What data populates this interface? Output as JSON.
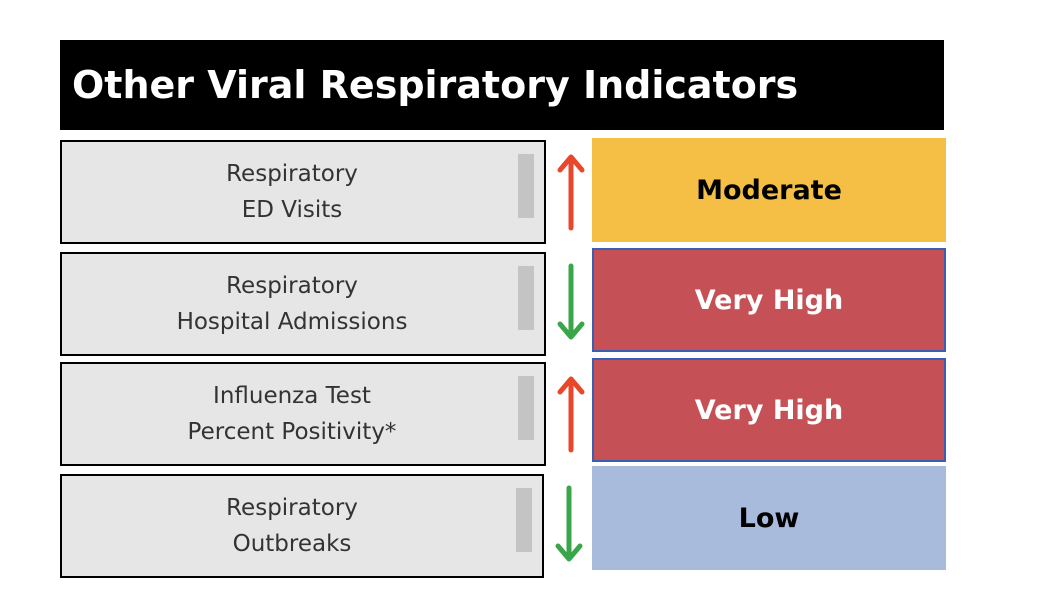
{
  "title": "Other Viral Respiratory Indicators",
  "indicators": [
    {
      "line1": "Respiratory",
      "line2": "ED Visits",
      "trend": "up",
      "trend_color": "#e8472c",
      "level": "Moderate",
      "level_bg": "#f4bf44",
      "level_fg": "#000000"
    },
    {
      "line1": "Respiratory",
      "line2": "Hospital Admissions",
      "trend": "down",
      "trend_color": "#3aa64a",
      "level": "Very High",
      "level_bg": "#c55055",
      "level_fg": "#ffffff"
    },
    {
      "line1": "Influenza Test",
      "line2": "Percent Positivity*",
      "trend": "up",
      "trend_color": "#e8472c",
      "level": "Very High",
      "level_bg": "#c55055",
      "level_fg": "#ffffff"
    },
    {
      "line1": "Respiratory",
      "line2": "Outbreaks",
      "trend": "down",
      "trend_color": "#3aa64a",
      "level": "Low",
      "level_bg": "#a9bbdd",
      "level_fg": "#000000"
    }
  ]
}
